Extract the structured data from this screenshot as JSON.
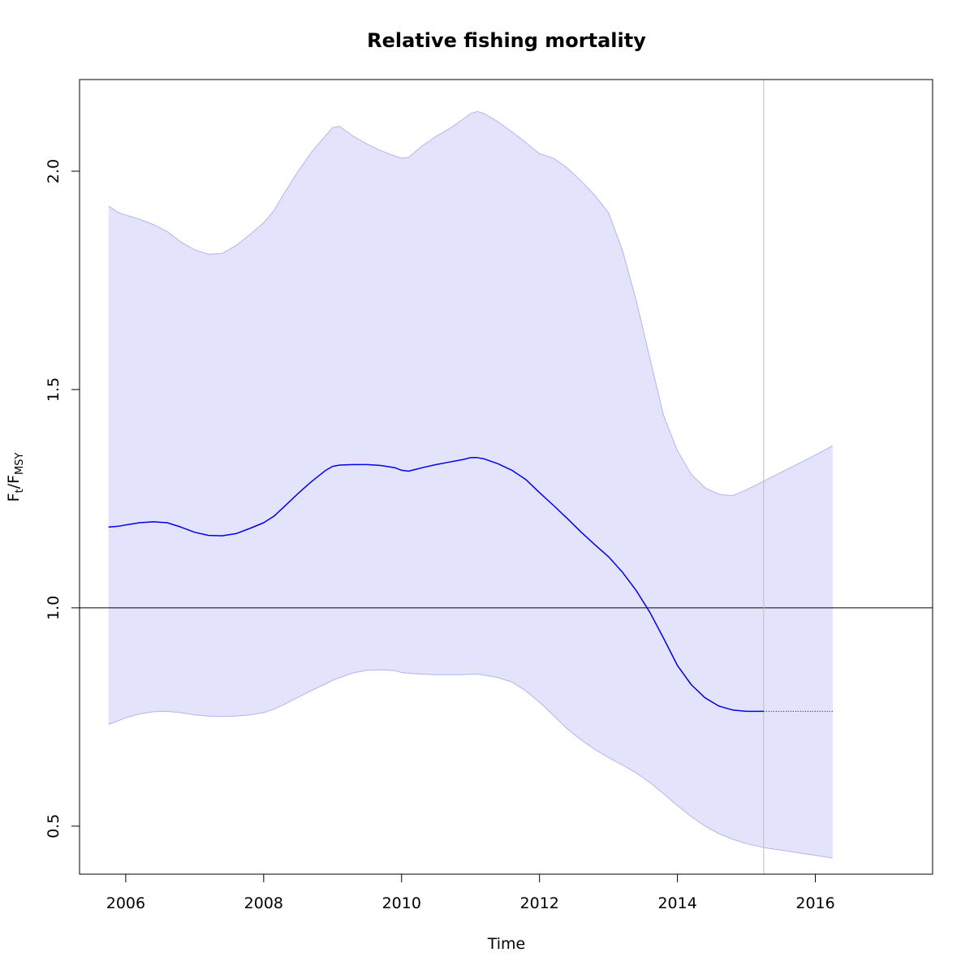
{
  "chart_data": {
    "type": "line",
    "title": "Relative fishing mortality",
    "xlabel": "Time",
    "ylabel": {
      "main_1": "F",
      "sub_1": "t",
      "slash": "/",
      "main_2": "F",
      "sub_2": "MSY"
    },
    "xlim": [
      2005.33,
      2017.7
    ],
    "ylim": [
      0.39,
      2.21
    ],
    "x_ticks": [
      2006,
      2008,
      2010,
      2012,
      2014,
      2016
    ],
    "x_tick_labels": [
      "2006",
      "2008",
      "2010",
      "2012",
      "2014",
      "2016"
    ],
    "y_ticks": [
      0.5,
      1.0,
      1.5,
      2.0
    ],
    "y_tick_labels": [
      "0.5",
      "1.0",
      "1.5",
      "2.0"
    ],
    "reference_line_y": 1.0,
    "vertical_line_x": 2015.25,
    "grid": false,
    "colors": {
      "estimate": "#0000ee",
      "band_fill": "#e3e3fc",
      "band_edge": "#b4b4f0",
      "reference_line": "#000000",
      "vertical_line": "#bebebe"
    },
    "series": [
      {
        "role": "estimate",
        "x": [
          2005.75,
          2005.9,
          2006.0,
          2006.2,
          2006.4,
          2006.6,
          2006.8,
          2007.0,
          2007.2,
          2007.4,
          2007.6,
          2007.8,
          2008.0,
          2008.15,
          2008.3,
          2008.5,
          2008.7,
          2008.9,
          2009.0,
          2009.1,
          2009.3,
          2009.5,
          2009.7,
          2009.9,
          2010.0,
          2010.1,
          2010.3,
          2010.5,
          2010.7,
          2010.9,
          2011.0,
          2011.1,
          2011.2,
          2011.4,
          2011.6,
          2011.8,
          2012.0,
          2012.2,
          2012.4,
          2012.6,
          2012.8,
          2013.0,
          2013.2,
          2013.4,
          2013.6,
          2013.8,
          2014.0,
          2014.2,
          2014.4,
          2014.6,
          2014.8,
          2015.0,
          2015.25
        ],
        "y": [
          1.185,
          1.187,
          1.19,
          1.195,
          1.197,
          1.195,
          1.185,
          1.173,
          1.166,
          1.165,
          1.17,
          1.182,
          1.195,
          1.21,
          1.232,
          1.262,
          1.29,
          1.315,
          1.324,
          1.327,
          1.328,
          1.328,
          1.326,
          1.321,
          1.315,
          1.313,
          1.321,
          1.328,
          1.334,
          1.34,
          1.344,
          1.344,
          1.341,
          1.33,
          1.315,
          1.294,
          1.264,
          1.235,
          1.205,
          1.174,
          1.145,
          1.117,
          1.082,
          1.04,
          0.99,
          0.93,
          0.868,
          0.824,
          0.794,
          0.775,
          0.766,
          0.763,
          0.763
        ]
      },
      {
        "role": "projection",
        "x": [
          2015.25,
          2016.25
        ],
        "y": [
          0.763,
          0.763
        ]
      },
      {
        "role": "upper",
        "x": [
          2005.75,
          2005.9,
          2006.0,
          2006.2,
          2006.4,
          2006.6,
          2006.8,
          2007.0,
          2007.2,
          2007.4,
          2007.6,
          2007.8,
          2008.0,
          2008.15,
          2008.3,
          2008.5,
          2008.7,
          2008.9,
          2009.0,
          2009.1,
          2009.3,
          2009.5,
          2009.7,
          2009.9,
          2010.0,
          2010.1,
          2010.3,
          2010.5,
          2010.7,
          2010.9,
          2011.0,
          2011.1,
          2011.2,
          2011.4,
          2011.6,
          2011.8,
          2012.0,
          2012.2,
          2012.4,
          2012.6,
          2012.8,
          2013.0,
          2013.2,
          2013.4,
          2013.6,
          2013.8,
          2014.0,
          2014.2,
          2014.4,
          2014.6,
          2014.8,
          2015.0,
          2015.25,
          2015.5,
          2015.75,
          2016.0,
          2016.25
        ],
        "y": [
          1.92,
          1.905,
          1.9,
          1.89,
          1.878,
          1.862,
          1.838,
          1.82,
          1.81,
          1.812,
          1.83,
          1.855,
          1.882,
          1.91,
          1.95,
          2.0,
          2.045,
          2.082,
          2.1,
          2.103,
          2.08,
          2.062,
          2.047,
          2.035,
          2.03,
          2.032,
          2.058,
          2.08,
          2.098,
          2.12,
          2.132,
          2.137,
          2.132,
          2.113,
          2.09,
          2.066,
          2.04,
          2.03,
          2.008,
          1.978,
          1.945,
          1.905,
          1.82,
          1.705,
          1.572,
          1.44,
          1.36,
          1.306,
          1.275,
          1.26,
          1.257,
          1.27,
          1.29,
          1.31,
          1.33,
          1.35,
          1.371
        ]
      },
      {
        "role": "lower",
        "x": [
          2005.75,
          2005.9,
          2006.0,
          2006.2,
          2006.4,
          2006.6,
          2006.8,
          2007.0,
          2007.2,
          2007.4,
          2007.6,
          2007.8,
          2008.0,
          2008.15,
          2008.3,
          2008.5,
          2008.7,
          2008.9,
          2009.0,
          2009.1,
          2009.3,
          2009.5,
          2009.7,
          2009.9,
          2010.0,
          2010.1,
          2010.3,
          2010.5,
          2010.7,
          2010.9,
          2011.0,
          2011.1,
          2011.2,
          2011.4,
          2011.6,
          2011.8,
          2012.0,
          2012.2,
          2012.4,
          2012.6,
          2012.8,
          2013.0,
          2013.2,
          2013.4,
          2013.6,
          2013.8,
          2014.0,
          2014.2,
          2014.4,
          2014.6,
          2014.8,
          2015.0,
          2015.25,
          2015.5,
          2015.75,
          2016.0,
          2016.25
        ],
        "y": [
          0.733,
          0.742,
          0.748,
          0.757,
          0.762,
          0.763,
          0.76,
          0.755,
          0.752,
          0.751,
          0.752,
          0.755,
          0.76,
          0.768,
          0.779,
          0.795,
          0.811,
          0.826,
          0.834,
          0.84,
          0.851,
          0.857,
          0.858,
          0.856,
          0.852,
          0.85,
          0.848,
          0.847,
          0.847,
          0.847,
          0.848,
          0.848,
          0.846,
          0.84,
          0.83,
          0.81,
          0.784,
          0.754,
          0.723,
          0.698,
          0.676,
          0.657,
          0.64,
          0.622,
          0.6,
          0.574,
          0.547,
          0.522,
          0.5,
          0.483,
          0.47,
          0.46,
          0.451,
          0.445,
          0.439,
          0.433,
          0.427
        ]
      }
    ]
  }
}
